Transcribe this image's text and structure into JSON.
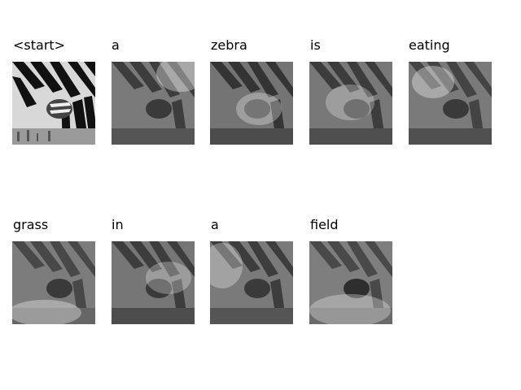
{
  "figure": {
    "tokens": [
      "<start>",
      "a",
      "zebra",
      "is",
      "eating",
      "grass",
      "in",
      "a",
      "field"
    ]
  }
}
